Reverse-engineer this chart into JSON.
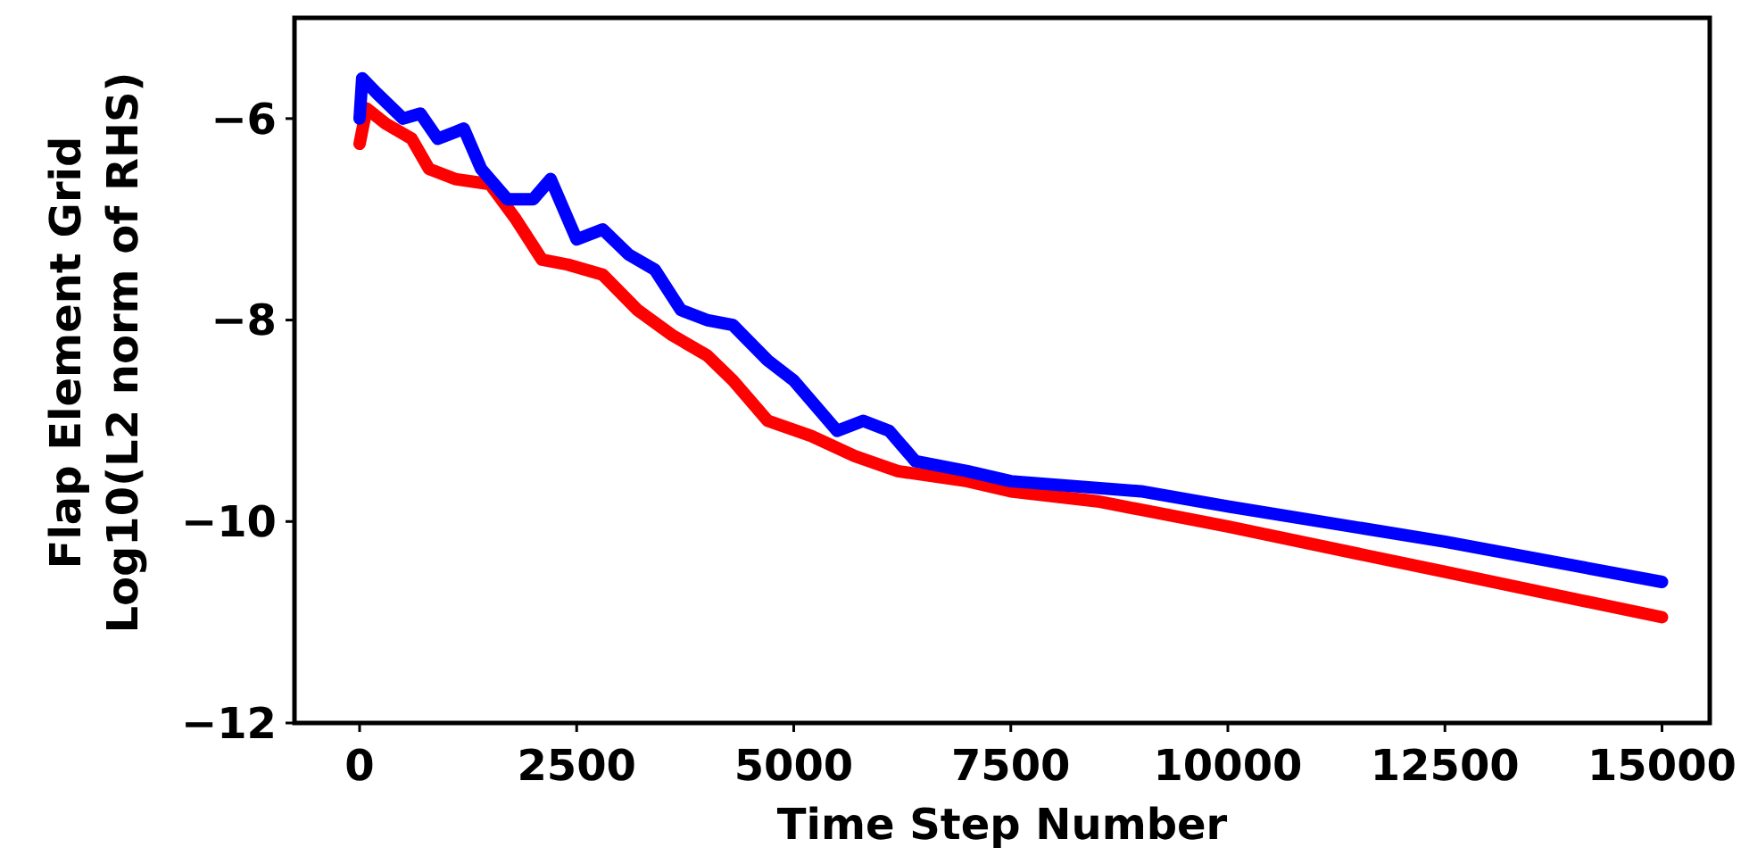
{
  "chart_data": {
    "type": "line",
    "xlabel": "Time Step Number",
    "ylabel": "Flap Element Grid\nLog10(L2 norm of RHS)",
    "xlim": [
      -750,
      15550
    ],
    "ylim": [
      -12,
      -5
    ],
    "xticks": [
      0,
      2500,
      5000,
      7500,
      10000,
      12500,
      15000
    ],
    "yticks": [
      {
        "value": -6,
        "label": "−6"
      },
      {
        "value": -8,
        "label": "−8"
      },
      {
        "value": -10,
        "label": "−10"
      },
      {
        "value": -12,
        "label": "−12"
      }
    ],
    "grid": false,
    "series": [
      {
        "color": "#ff0000",
        "x": [
          0,
          80,
          300,
          600,
          800,
          1100,
          1500,
          1800,
          2100,
          2400,
          2800,
          3200,
          3600,
          4000,
          4300,
          4700,
          5200,
          5700,
          6200,
          7000,
          7500,
          8500,
          10000,
          12500,
          15000
        ],
        "values": [
          -6.25,
          -5.9,
          -6.05,
          -6.2,
          -6.5,
          -6.6,
          -6.65,
          -7.0,
          -7.4,
          -7.45,
          -7.55,
          -7.9,
          -8.15,
          -8.35,
          -8.6,
          -9.0,
          -9.15,
          -9.35,
          -9.5,
          -9.6,
          -9.7,
          -9.8,
          -10.05,
          -10.5,
          -10.95
        ]
      },
      {
        "color": "#0000ff",
        "x": [
          0,
          30,
          200,
          500,
          700,
          900,
          1200,
          1400,
          1700,
          2000,
          2200,
          2500,
          2800,
          3100,
          3400,
          3700,
          4000,
          4300,
          4700,
          5000,
          5500,
          5800,
          6100,
          6400,
          7000,
          7500,
          9000,
          10000,
          12500,
          15000
        ],
        "values": [
          -6.0,
          -5.6,
          -5.75,
          -6.0,
          -5.95,
          -6.2,
          -6.1,
          -6.5,
          -6.8,
          -6.8,
          -6.6,
          -7.2,
          -7.1,
          -7.35,
          -7.5,
          -7.9,
          -8.0,
          -8.05,
          -8.4,
          -8.6,
          -9.1,
          -9.0,
          -9.1,
          -9.4,
          -9.5,
          -9.6,
          -9.7,
          -9.85,
          -10.2,
          -10.6
        ]
      }
    ]
  }
}
